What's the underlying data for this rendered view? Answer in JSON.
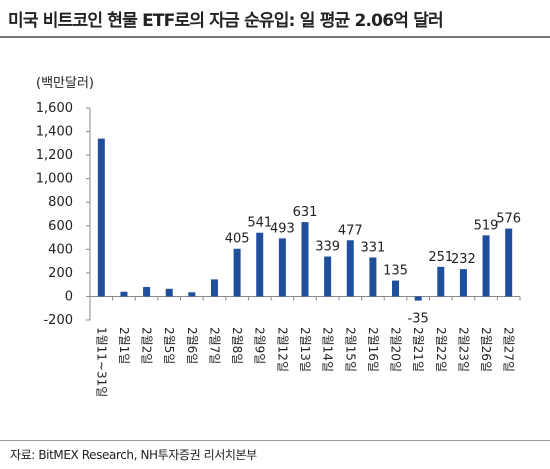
{
  "header": {
    "title": "미국 비트코인 현물 ETF로의 자금 순유입: 일 평균 2.06억 달러"
  },
  "footer": {
    "source": "자료: BitMEX Research, NH투자증권 리서치본부"
  },
  "colors": {
    "bar": "#1f4e9c",
    "axis": "#888888",
    "text": "#222222"
  },
  "chart_data": {
    "type": "bar",
    "unit_label": "(백만달러)",
    "categories": [
      "1월11~31일",
      "2월1일",
      "2월2일",
      "2월5일",
      "2월6일",
      "2월7일",
      "2월8일",
      "2월9일",
      "2월12일",
      "2월13일",
      "2월14일",
      "2월15일",
      "2월16일",
      "2월20일",
      "2월21일",
      "2월22일",
      "2월23일",
      "2월26일",
      "2월27일"
    ],
    "values": [
      1340,
      40,
      80,
      65,
      35,
      145,
      405,
      541,
      493,
      631,
      339,
      477,
      331,
      135,
      -35,
      251,
      232,
      519,
      576
    ],
    "data_labels": [
      null,
      null,
      null,
      null,
      null,
      null,
      "405",
      "541",
      "493",
      "631",
      "339",
      "477",
      "331",
      "135",
      "-35",
      "251",
      "232",
      "519",
      "576"
    ],
    "y_ticks": [
      "-200",
      "0",
      "200",
      "400",
      "600",
      "800",
      "1,000",
      "1,200",
      "1,400",
      "1,600"
    ],
    "ylim": [
      -200,
      1600
    ],
    "grid": false,
    "legend": "none"
  }
}
